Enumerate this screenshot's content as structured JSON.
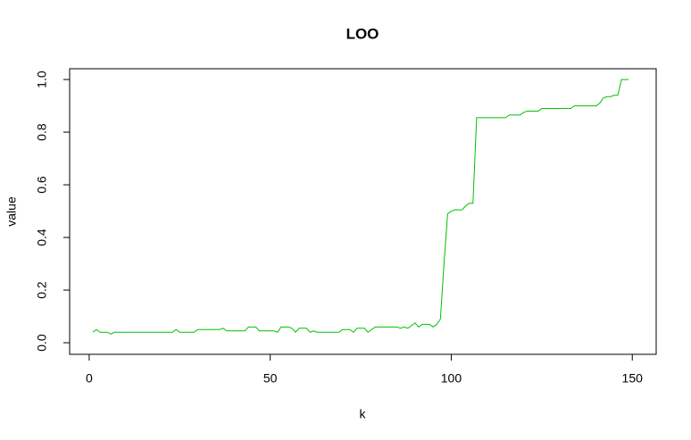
{
  "chart_data": {
    "type": "line",
    "title": "LOO",
    "x_label": "k",
    "y_label": "value",
    "x": [
      1,
      2,
      3,
      4,
      5,
      6,
      7,
      8,
      9,
      10,
      11,
      12,
      13,
      14,
      15,
      16,
      17,
      18,
      19,
      20,
      21,
      22,
      23,
      24,
      25,
      26,
      27,
      28,
      29,
      30,
      31,
      32,
      33,
      34,
      35,
      36,
      37,
      38,
      39,
      40,
      41,
      42,
      43,
      44,
      45,
      46,
      47,
      48,
      49,
      50,
      51,
      52,
      53,
      54,
      55,
      56,
      57,
      58,
      59,
      60,
      61,
      62,
      63,
      64,
      65,
      66,
      67,
      68,
      69,
      70,
      71,
      72,
      73,
      74,
      75,
      76,
      77,
      78,
      79,
      80,
      81,
      82,
      83,
      84,
      85,
      86,
      87,
      88,
      89,
      90,
      91,
      92,
      93,
      94,
      95,
      96,
      97,
      98,
      99,
      100,
      101,
      102,
      103,
      104,
      105,
      106,
      107,
      108,
      109,
      110,
      111,
      112,
      113,
      114,
      115,
      116,
      117,
      118,
      119,
      120,
      121,
      122,
      123,
      124,
      125,
      126,
      127,
      128,
      129,
      130,
      131,
      132,
      133,
      134,
      135,
      136,
      137,
      138,
      139,
      140,
      141,
      142,
      143,
      144,
      145,
      146,
      147,
      148,
      149
    ],
    "series": [
      {
        "color": "#00c000",
        "values": [
          0.04,
          0.05,
          0.04,
          0.04,
          0.04,
          0.033,
          0.04,
          0.04,
          0.04,
          0.04,
          0.04,
          0.04,
          0.04,
          0.04,
          0.04,
          0.04,
          0.04,
          0.04,
          0.04,
          0.04,
          0.04,
          0.04,
          0.04,
          0.05,
          0.04,
          0.04,
          0.04,
          0.04,
          0.04,
          0.05,
          0.05,
          0.05,
          0.05,
          0.05,
          0.05,
          0.05,
          0.055,
          0.045,
          0.045,
          0.045,
          0.045,
          0.045,
          0.045,
          0.06,
          0.06,
          0.06,
          0.045,
          0.045,
          0.045,
          0.045,
          0.045,
          0.04,
          0.06,
          0.06,
          0.06,
          0.055,
          0.04,
          0.055,
          0.055,
          0.055,
          0.04,
          0.045,
          0.04,
          0.04,
          0.04,
          0.04,
          0.04,
          0.04,
          0.04,
          0.05,
          0.05,
          0.05,
          0.04,
          0.055,
          0.055,
          0.055,
          0.04,
          0.05,
          0.06,
          0.06,
          0.06,
          0.06,
          0.06,
          0.06,
          0.06,
          0.055,
          0.06,
          0.055,
          0.065,
          0.075,
          0.06,
          0.07,
          0.07,
          0.07,
          0.06,
          0.07,
          0.09,
          0.3,
          0.49,
          0.5,
          0.505,
          0.505,
          0.505,
          0.52,
          0.53,
          0.53,
          0.855,
          0.855,
          0.855,
          0.855,
          0.855,
          0.855,
          0.855,
          0.855,
          0.855,
          0.865,
          0.865,
          0.865,
          0.865,
          0.875,
          0.88,
          0.88,
          0.88,
          0.88,
          0.89,
          0.89,
          0.89,
          0.89,
          0.89,
          0.89,
          0.89,
          0.89,
          0.89,
          0.9,
          0.9,
          0.9,
          0.9,
          0.9,
          0.9,
          0.9,
          0.91,
          0.93,
          0.935,
          0.935,
          0.94,
          0.94,
          1.0,
          1.0,
          1.0
        ]
      }
    ],
    "xlim": [
      -5.4,
      156.6
    ],
    "ylim": [
      -0.044,
      1.041
    ],
    "xticks": [
      0,
      50,
      100,
      150
    ],
    "yticks": [
      {
        "value": 0,
        "label": "0.0"
      },
      0.2,
      0.4,
      0.6,
      0.8,
      {
        "value": 1,
        "label": "1.0"
      }
    ],
    "grid": false
  }
}
